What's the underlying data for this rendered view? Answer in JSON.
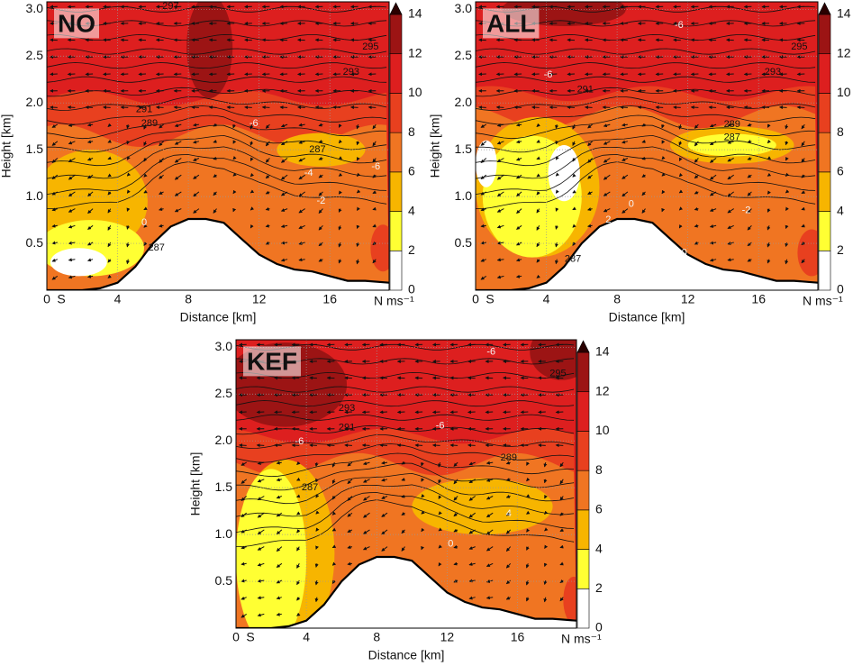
{
  "chart_data": [
    {
      "type": "contour",
      "panel_label": "NO",
      "x_label": "Distance [km]",
      "y_label": "Height [km]",
      "station_label": "S",
      "xlim": [
        0,
        19.35
      ],
      "xticks": [
        0,
        4,
        8,
        12,
        16
      ],
      "ylim": [
        0,
        3.08
      ],
      "yticks": [
        0.5,
        {
          "value": 1,
          "label": "1.0"
        },
        1.5,
        {
          "value": 2,
          "label": "2.0"
        },
        2.5,
        {
          "value": 3,
          "label": "3.0"
        }
      ],
      "grid": true,
      "terrain": {
        "x": [
          0,
          2,
          3,
          4,
          5,
          6,
          7,
          8,
          9,
          10,
          11,
          12,
          13,
          14,
          15,
          16,
          17,
          18,
          19.35
        ],
        "y": [
          0,
          0,
          0.02,
          0.08,
          0.25,
          0.5,
          0.68,
          0.76,
          0.76,
          0.72,
          0.55,
          0.38,
          0.28,
          0.22,
          0.2,
          0.15,
          0.1,
          0.1,
          0.08
        ]
      },
      "theta_labels": {
        "values": [
          297,
          295,
          293,
          291,
          289,
          287,
          287
        ],
        "x": [
          7,
          18.3,
          17.2,
          5.5,
          5.8,
          15.3,
          6.2
        ],
        "y": [
          3.03,
          2.6,
          2.33,
          1.93,
          1.78,
          1.5,
          0.45
        ]
      },
      "wind_labels": {
        "values": [
          -6,
          -4,
          -2,
          0,
          -6
        ],
        "x": [
          11.7,
          14.8,
          15.5,
          5.5,
          18.6
        ],
        "y": [
          1.78,
          1.25,
          0.95,
          0.72,
          1.32
        ]
      },
      "colorbar": {
        "levels": [
          0,
          2,
          4,
          6,
          8,
          10,
          12,
          14
        ],
        "colors": [
          "#ffffff",
          "#ffff33",
          "#f7b500",
          "#f07522",
          "#e8401f",
          "#dd1f1f",
          "#9c1414"
        ],
        "over_color": "#2a0000",
        "unit_label": "N ms⁻¹"
      }
    },
    {
      "type": "contour",
      "panel_label": "ALL",
      "x_label": "Distance [km]",
      "y_label": "Height [km]",
      "station_label": "S",
      "xlim": [
        0,
        19.35
      ],
      "xticks": [
        0,
        4,
        8,
        12,
        16
      ],
      "ylim": [
        0,
        3.08
      ],
      "yticks": [
        0.5,
        {
          "value": 1,
          "label": "1.0"
        },
        1.5,
        {
          "value": 2,
          "label": "2.0"
        },
        2.5,
        {
          "value": 3,
          "label": "3.0"
        }
      ],
      "grid": true,
      "terrain": {
        "x": [
          0,
          2,
          3,
          4,
          5,
          6,
          7,
          8,
          9,
          10,
          11,
          12,
          13,
          14,
          15,
          16,
          17,
          18,
          19.35
        ],
        "y": [
          0,
          0,
          0.02,
          0.08,
          0.25,
          0.5,
          0.68,
          0.76,
          0.76,
          0.72,
          0.55,
          0.38,
          0.28,
          0.22,
          0.2,
          0.15,
          0.1,
          0.1,
          0.08
        ]
      },
      "theta_labels": {
        "values": [
          295,
          293,
          291,
          289,
          287,
          287
        ],
        "x": [
          18.3,
          16.8,
          6.2,
          14.5,
          14.5,
          5.5
        ],
        "y": [
          2.6,
          2.33,
          2.14,
          1.77,
          1.63,
          0.33
        ]
      },
      "wind_labels": {
        "values": [
          -6,
          -6,
          0,
          -2,
          2,
          0
        ],
        "x": [
          11.5,
          4.1,
          8.8,
          15.3,
          7.5,
          11.8
        ],
        "y": [
          2.83,
          2.3,
          0.92,
          0.85,
          0.75,
          0.4
        ]
      },
      "colorbar": {
        "levels": [
          0,
          2,
          4,
          6,
          8,
          10,
          12,
          14
        ],
        "colors": [
          "#ffffff",
          "#ffff33",
          "#f7b500",
          "#f07522",
          "#e8401f",
          "#dd1f1f",
          "#9c1414"
        ],
        "over_color": "#2a0000",
        "unit_label": "N ms⁻¹"
      }
    },
    {
      "type": "contour",
      "panel_label": "KEF",
      "x_label": "Distance [km]",
      "y_label": "Height [km]",
      "station_label": "S",
      "xlim": [
        0,
        19.35
      ],
      "xticks": [
        0,
        4,
        8,
        12,
        16
      ],
      "ylim": [
        0,
        3.08
      ],
      "yticks": [
        0.5,
        {
          "value": 1,
          "label": "1.0"
        },
        1.5,
        {
          "value": 2,
          "label": "2.0"
        },
        2.5,
        {
          "value": 3,
          "label": "3.0"
        }
      ],
      "grid": true,
      "terrain": {
        "x": [
          0,
          2,
          3,
          4,
          5,
          6,
          7,
          8,
          9,
          10,
          11,
          12,
          13,
          14,
          15,
          16,
          17,
          18,
          19.35
        ],
        "y": [
          0,
          0,
          0.02,
          0.08,
          0.25,
          0.5,
          0.68,
          0.76,
          0.76,
          0.72,
          0.55,
          0.38,
          0.28,
          0.22,
          0.2,
          0.15,
          0.1,
          0.1,
          0.08
        ]
      },
      "theta_labels": {
        "values": [
          295,
          293,
          291,
          289,
          287
        ],
        "x": [
          18.3,
          6.3,
          6.3,
          15.5,
          4.2
        ],
        "y": [
          2.72,
          2.35,
          2.14,
          1.82,
          1.5
        ]
      },
      "wind_labels": {
        "values": [
          -6,
          -6,
          -6,
          0,
          4
        ],
        "x": [
          14.5,
          11.6,
          3.6,
          12.2,
          15.5
        ],
        "y": [
          2.95,
          2.16,
          1.99,
          0.9,
          1.22
        ]
      },
      "colorbar": {
        "levels": [
          0,
          2,
          4,
          6,
          8,
          10,
          12,
          14
        ],
        "colors": [
          "#ffffff",
          "#ffff33",
          "#f7b500",
          "#f07522",
          "#e8401f",
          "#dd1f1f",
          "#9c1414"
        ],
        "over_color": "#2a0000",
        "unit_label": "N ms⁻¹"
      }
    }
  ]
}
